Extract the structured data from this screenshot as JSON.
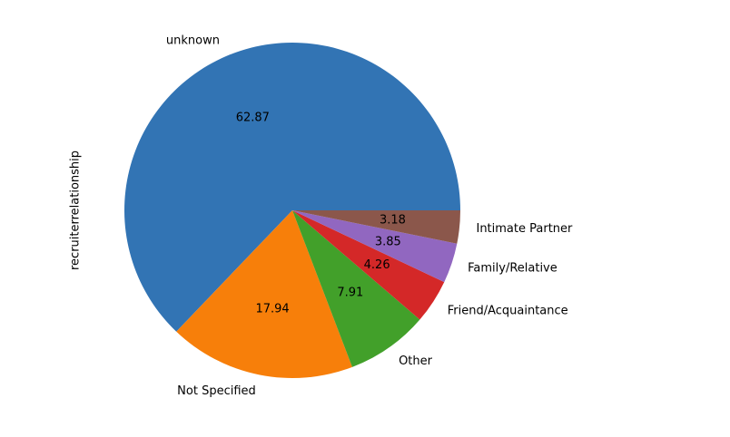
{
  "chart_data": {
    "type": "pie",
    "ylabel": "recruiterrelationship",
    "start_angle_deg": 0,
    "direction": "counterclockwise",
    "value_format": "%.2f",
    "slices": [
      {
        "label": "unknown",
        "value": 62.87,
        "color": "#3274b4"
      },
      {
        "label": "Not Specified",
        "value": 17.94,
        "color": "#f77f0a"
      },
      {
        "label": "Other",
        "value": 7.91,
        "color": "#42a02a"
      },
      {
        "label": "Friend/Acquaintance",
        "value": 4.26,
        "color": "#d42828"
      },
      {
        "label": "Family/Relative",
        "value": 3.85,
        "color": "#9167c0"
      },
      {
        "label": "Intimate Partner",
        "value": 3.18,
        "color": "#8b574b"
      }
    ]
  }
}
